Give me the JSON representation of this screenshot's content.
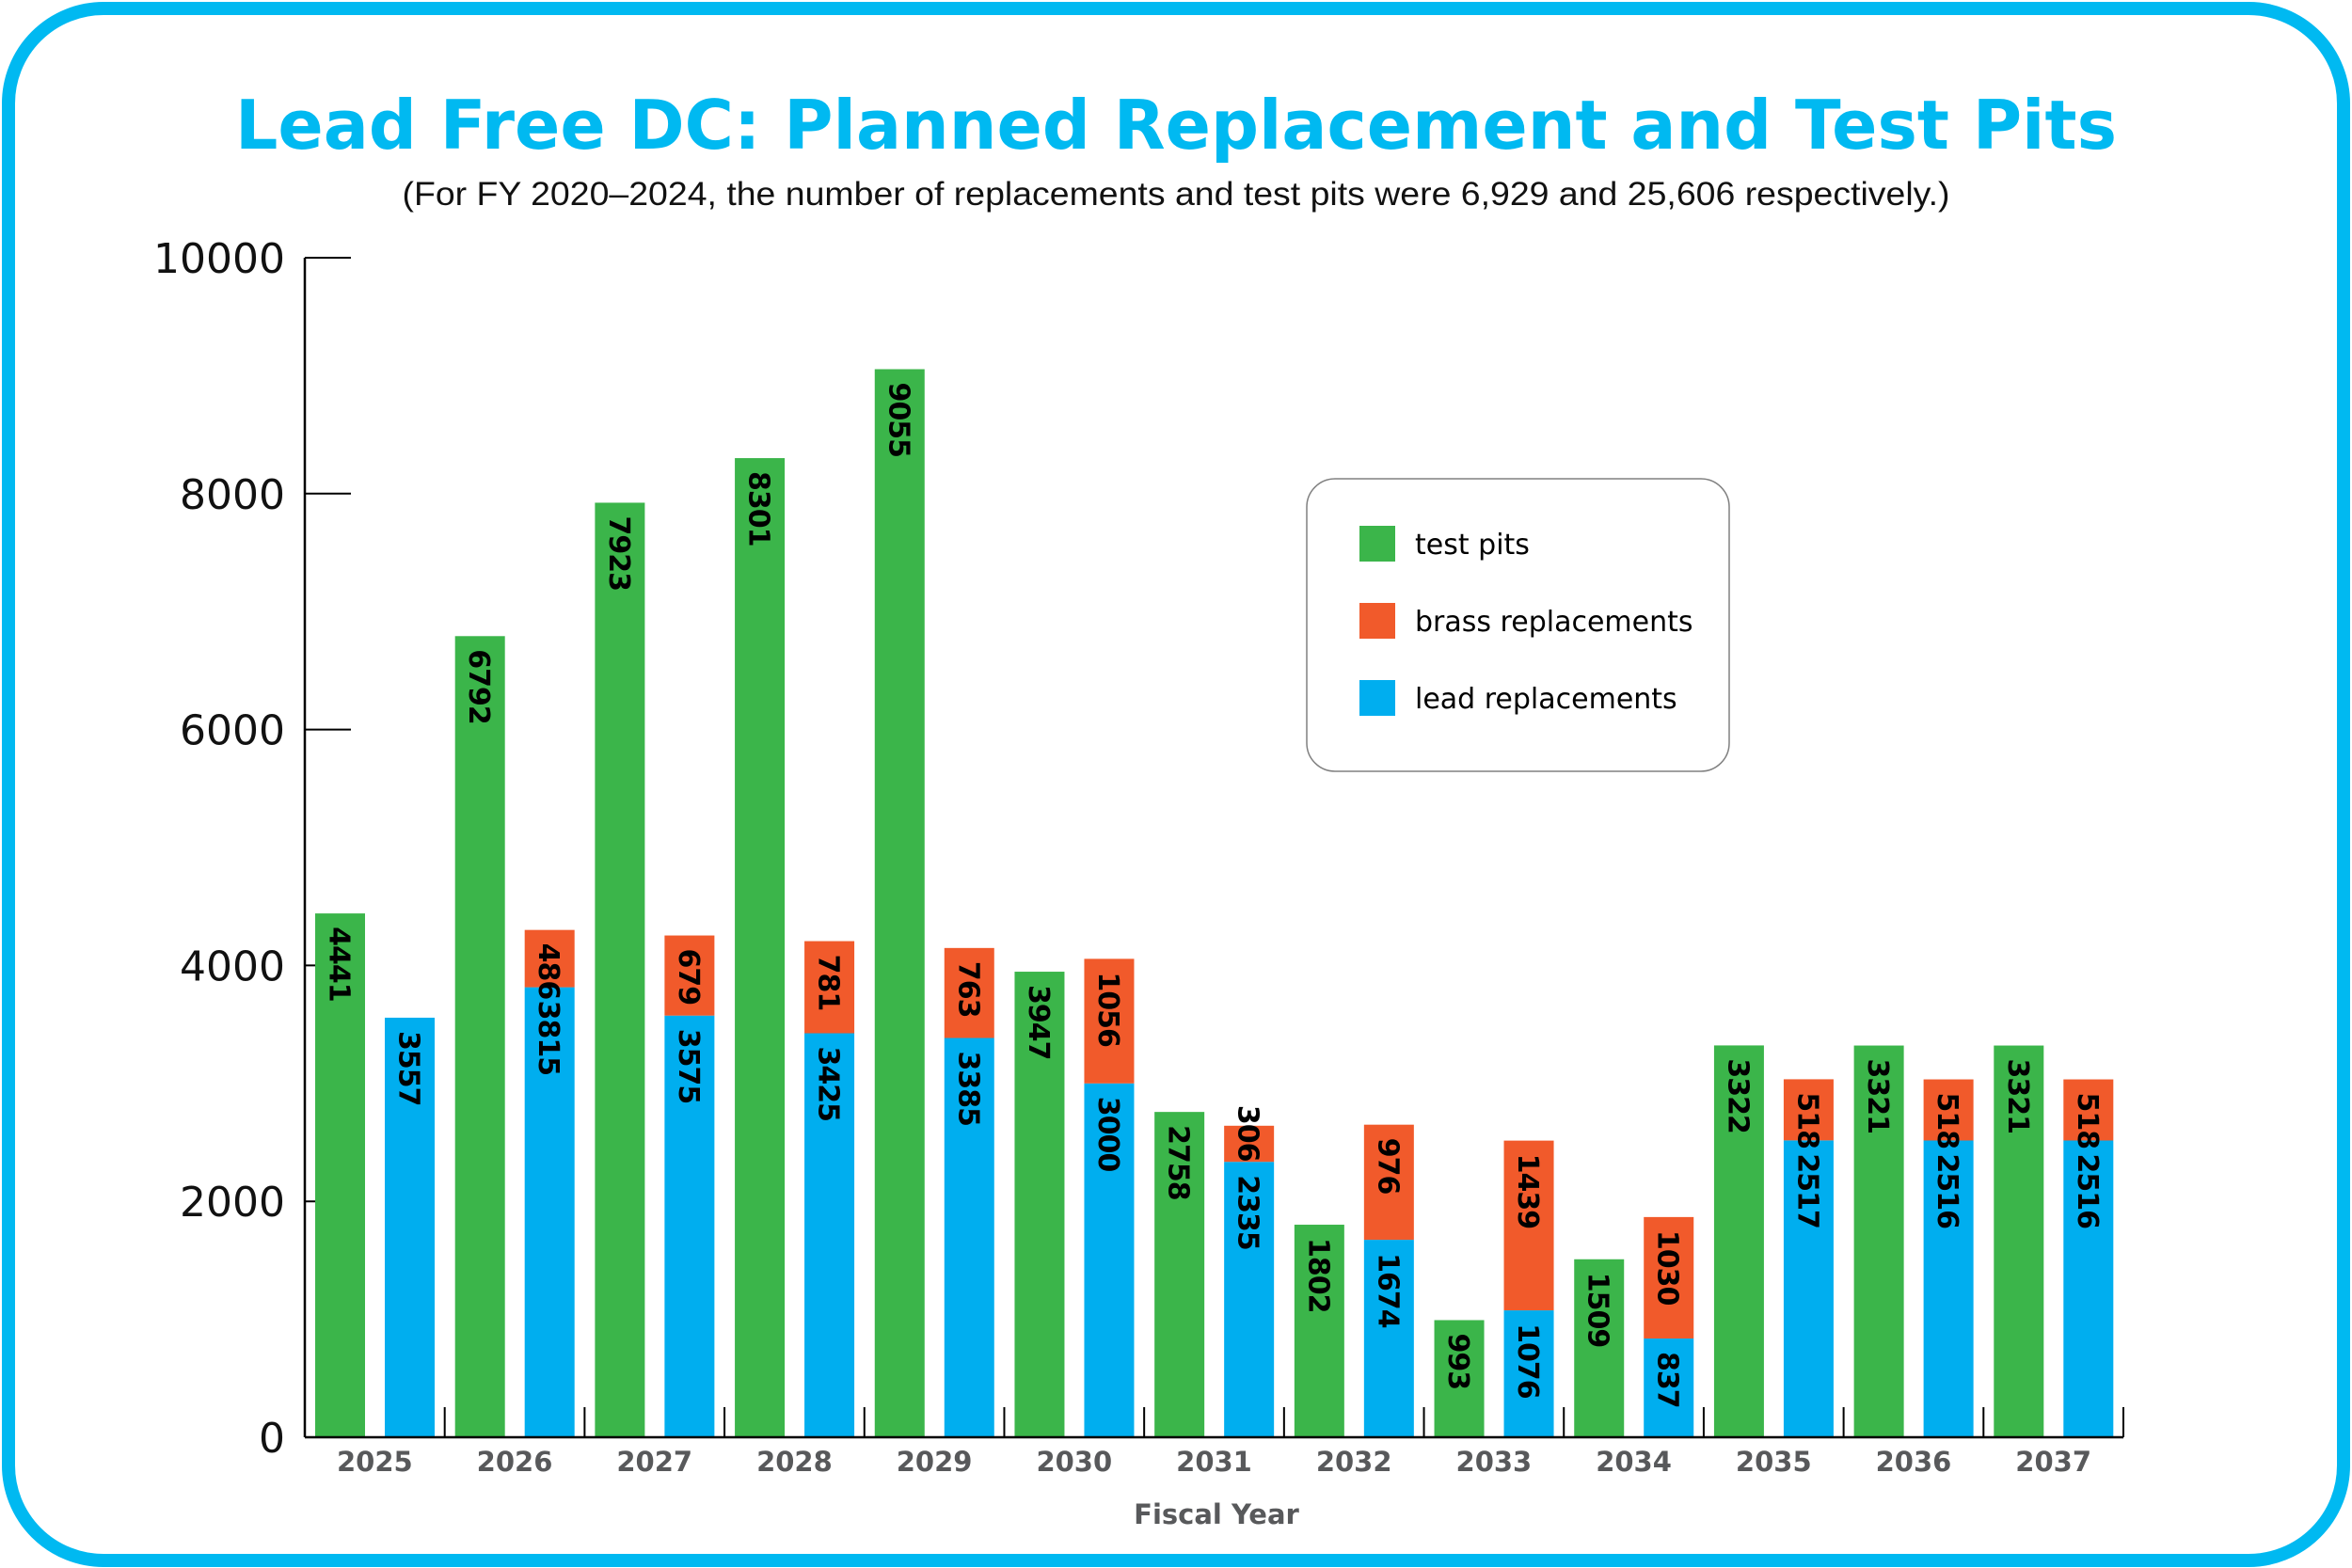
{
  "chart_data": {
    "type": "bar",
    "title": "Lead Free DC: Planned Replacement and Test Pits",
    "subtitle": "(For FY 2020–2024, the number of replacements and test pits were 6,929 and 25,606 respectively.)",
    "xlabel": "Fiscal Year",
    "ylabel": "",
    "ylim": [
      0,
      10000
    ],
    "yticks": [
      "0",
      "2000",
      "4000",
      "6000",
      "8000",
      "10000"
    ],
    "ytick_values": [
      0,
      2000,
      4000,
      6000,
      8000,
      10000
    ],
    "grid": false,
    "legend_position": "upper-center-right",
    "categories": [
      "2025",
      "2026",
      "2027",
      "2028",
      "2029",
      "2030",
      "2031",
      "2032",
      "2033",
      "2034",
      "2035",
      "2036",
      "2037"
    ],
    "series": [
      {
        "name": "test pits",
        "color": "#3BB54A",
        "stack": "pits",
        "values": [
          4441,
          6792,
          7923,
          8301,
          9055,
          3947,
          2758,
          1802,
          993,
          1509,
          3322,
          3321,
          3321
        ]
      },
      {
        "name": "lead replacements",
        "color": "#00AEEF",
        "stack": "replacements",
        "values": [
          3557,
          3815,
          3575,
          3425,
          3385,
          3000,
          2335,
          1674,
          1076,
          837,
          2517,
          2516,
          2516
        ]
      },
      {
        "name": "brass replacements",
        "color": "#F15A2B",
        "stack": "replacements",
        "values": [
          null,
          486,
          679,
          781,
          763,
          1056,
          306,
          976,
          1439,
          1030,
          518,
          518,
          518
        ]
      }
    ],
    "legend": [
      {
        "label": "test pits",
        "color": "#3BB54A"
      },
      {
        "label": "brass replacements",
        "color": "#F15A2B"
      },
      {
        "label": "lead replacements",
        "color": "#00AEEF"
      }
    ]
  },
  "colors": {
    "frame": "#00B9F1",
    "title": "#00B9F1",
    "axis_text": "#58595B"
  }
}
